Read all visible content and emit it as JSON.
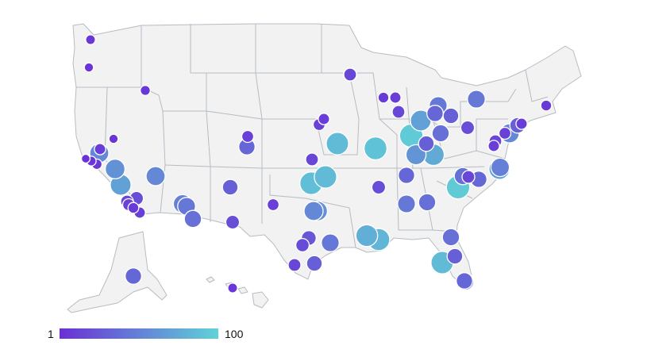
{
  "map": {
    "region": "United States",
    "color_scale": {
      "min": 1,
      "max": 100,
      "min_color": "#6a2fd6",
      "max_color": "#5fd3d6"
    }
  },
  "legend": {
    "min_label": "1",
    "max_label": "100"
  },
  "points": [
    {
      "id": "seattle",
      "v": 5
    },
    {
      "id": "portland",
      "v": 4
    },
    {
      "id": "boise",
      "v": 6
    },
    {
      "id": "sacramento",
      "v": 10
    },
    {
      "id": "reno",
      "v": 4
    },
    {
      "id": "sf-1",
      "v": 3
    },
    {
      "id": "sf-2",
      "v": 5
    },
    {
      "id": "san-jose",
      "v": 7
    },
    {
      "id": "bay-area",
      "v": 55
    },
    {
      "id": "fresno",
      "v": 60
    },
    {
      "id": "central-ca",
      "v": 70
    },
    {
      "id": "las-vegas",
      "v": 55
    },
    {
      "id": "la-1",
      "v": 20
    },
    {
      "id": "la-2",
      "v": 15
    },
    {
      "id": "la-3",
      "v": 8
    },
    {
      "id": "la-4",
      "v": 10
    },
    {
      "id": "san-diego",
      "v": 12
    },
    {
      "id": "phoenix-1",
      "v": 50
    },
    {
      "id": "phoenix-2",
      "v": 45
    },
    {
      "id": "tucson",
      "v": 40
    },
    {
      "id": "albuquerque",
      "v": 30
    },
    {
      "id": "el-paso",
      "v": 20
    },
    {
      "id": "denver-1",
      "v": 12
    },
    {
      "id": "denver-2",
      "v": 35
    },
    {
      "id": "omaha",
      "v": 10
    },
    {
      "id": "lincoln",
      "v": 12
    },
    {
      "id": "kansas-city",
      "v": 85
    },
    {
      "id": "wichita",
      "v": 15
    },
    {
      "id": "okc-1",
      "v": 88
    },
    {
      "id": "okc-2",
      "v": 85
    },
    {
      "id": "lubbock",
      "v": 12
    },
    {
      "id": "dallas-1",
      "v": 55
    },
    {
      "id": "dallas-2",
      "v": 60
    },
    {
      "id": "san-antonio",
      "v": 18
    },
    {
      "id": "austin",
      "v": 25
    },
    {
      "id": "corpus",
      "v": 15
    },
    {
      "id": "houston-1",
      "v": 30
    },
    {
      "id": "houston-2",
      "v": 45
    },
    {
      "id": "new-orleans-1",
      "v": 78
    },
    {
      "id": "new-orleans-2",
      "v": 82
    },
    {
      "id": "memphis",
      "v": 20
    },
    {
      "id": "st-louis",
      "v": 90
    },
    {
      "id": "minneapolis-1",
      "v": 18
    },
    {
      "id": "minneapolis-2",
      "v": 15
    },
    {
      "id": "milwaukee-1",
      "v": 8
    },
    {
      "id": "milwaukee-2",
      "v": 10
    },
    {
      "id": "chicago",
      "v": 15
    },
    {
      "id": "indianapolis-1",
      "v": 95
    },
    {
      "id": "indianapolis-2",
      "v": 62
    },
    {
      "id": "louisville",
      "v": 75
    },
    {
      "id": "columbus",
      "v": 40
    },
    {
      "id": "dayton",
      "v": 30
    },
    {
      "id": "cincinnati",
      "v": 70
    },
    {
      "id": "detroit-1",
      "v": 35
    },
    {
      "id": "detroit-2",
      "v": 45
    },
    {
      "id": "ohio-1",
      "v": 30
    },
    {
      "id": "pittsburgh",
      "v": 20
    },
    {
      "id": "nashville",
      "v": 35
    },
    {
      "id": "atlanta",
      "v": 45
    },
    {
      "id": "birmingham",
      "v": 40
    },
    {
      "id": "charlotte-1",
      "v": 95
    },
    {
      "id": "charlotte-2",
      "v": 15
    },
    {
      "id": "raleigh-1",
      "v": 40
    },
    {
      "id": "raleigh-2",
      "v": 35
    },
    {
      "id": "virginia-beach-1",
      "v": 70
    },
    {
      "id": "virginia-beach-2",
      "v": 50
    },
    {
      "id": "dc-1",
      "v": 15
    },
    {
      "id": "dc-2",
      "v": 10
    },
    {
      "id": "philadelphia",
      "v": 12
    },
    {
      "id": "new-york-1",
      "v": 55
    },
    {
      "id": "new-york-2",
      "v": 30
    },
    {
      "id": "new-york-3",
      "v": 10
    },
    {
      "id": "boston",
      "v": 8
    },
    {
      "id": "buffalo",
      "v": 45
    },
    {
      "id": "jacksonville",
      "v": 40
    },
    {
      "id": "orlando",
      "v": 85
    },
    {
      "id": "tampa",
      "v": 30
    },
    {
      "id": "miami-1",
      "v": 35
    },
    {
      "id": "miami-2",
      "v": 40
    },
    {
      "id": "anchorage",
      "v": 35
    },
    {
      "id": "honolulu",
      "v": 5
    }
  ]
}
